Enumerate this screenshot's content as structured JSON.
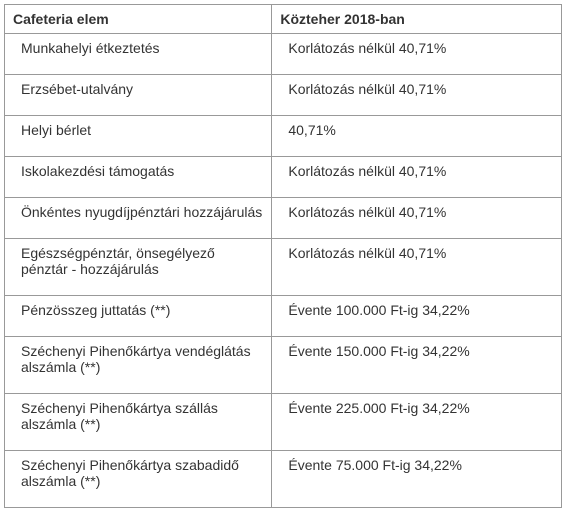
{
  "table": {
    "columns": [
      "Cafeteria elem",
      "Közteher 2018-ban"
    ],
    "rows": [
      [
        "Munkahelyi étkeztetés",
        "Korlátozás nélkül 40,71%"
      ],
      [
        "Erzsébet-utalvány",
        "Korlátozás nélkül 40,71%"
      ],
      [
        "Helyi bérlet",
        "40,71%"
      ],
      [
        "Iskolakezdési támogatás",
        "Korlátozás nélkül 40,71%"
      ],
      [
        "Önkéntes nyugdíjpénztári hozzájárulás",
        "Korlátozás nélkül 40,71%"
      ],
      [
        "Egészségpénztár, önsegélyező pénztár - hozzájárulás",
        "Korlátozás nélkül 40,71%"
      ],
      [
        "Pénzösszeg juttatás (**)",
        "Évente 100.000 Ft-ig 34,22%"
      ],
      [
        "Széchenyi Pihenőkártya vendéglátás    alszámla (**)",
        "Évente 150.000 Ft-ig 34,22%"
      ],
      [
        "Széchenyi Pihenőkártya szállás alszámla (**)",
        "Évente 225.000 Ft-ig 34,22%"
      ],
      [
        "Széchenyi Pihenőkártya szabadidő alszámla (**)",
        "Évente 75.000 Ft-ig 34,22%"
      ]
    ],
    "header_bg": "#ffffff",
    "cell_bg": "#ffffff",
    "border_color": "#999999",
    "text_color": "#333333",
    "font_size": 14
  }
}
